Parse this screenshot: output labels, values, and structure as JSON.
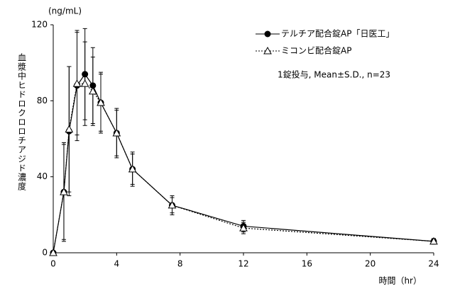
{
  "chart_data": {
    "type": "line",
    "y_unit": "(ng/mL)",
    "ylabel": "血漿中ヒドロクロロチアジド濃度",
    "xlabel": "時間（hr）",
    "annotation": "1錠投与, Mean±S.D., n=23",
    "x": [
      0,
      0.67,
      1,
      1.5,
      2,
      2.5,
      3,
      4,
      5,
      7.5,
      12,
      24
    ],
    "series": [
      {
        "name": "テルチア配合錠AP「日医工」",
        "color": "#000000",
        "marker": "circle",
        "linestyle": "solid",
        "values": [
          0,
          32,
          64,
          88,
          94,
          88,
          79,
          63,
          44,
          25,
          14,
          6
        ],
        "errors": [
          0,
          26,
          34,
          29,
          24,
          20,
          16,
          13,
          9,
          5,
          3,
          1.5
        ]
      },
      {
        "name": "ミコンビ配合錠AP",
        "color": "#000000",
        "marker": "triangle",
        "linestyle": "dotted",
        "values": [
          0,
          32,
          65,
          89,
          89,
          85,
          79,
          63,
          44,
          25,
          13,
          6
        ],
        "errors": [
          0,
          25,
          33,
          27,
          22,
          18,
          15,
          12,
          8,
          4,
          3,
          1
        ]
      }
    ],
    "xlim": [
      0,
      24
    ],
    "xticks": [
      0,
      4,
      8,
      12,
      16,
      20,
      24
    ],
    "ylim": [
      0,
      120
    ],
    "yticks": [
      0,
      40,
      80,
      120
    ],
    "grid": false,
    "legend": "upper right"
  }
}
